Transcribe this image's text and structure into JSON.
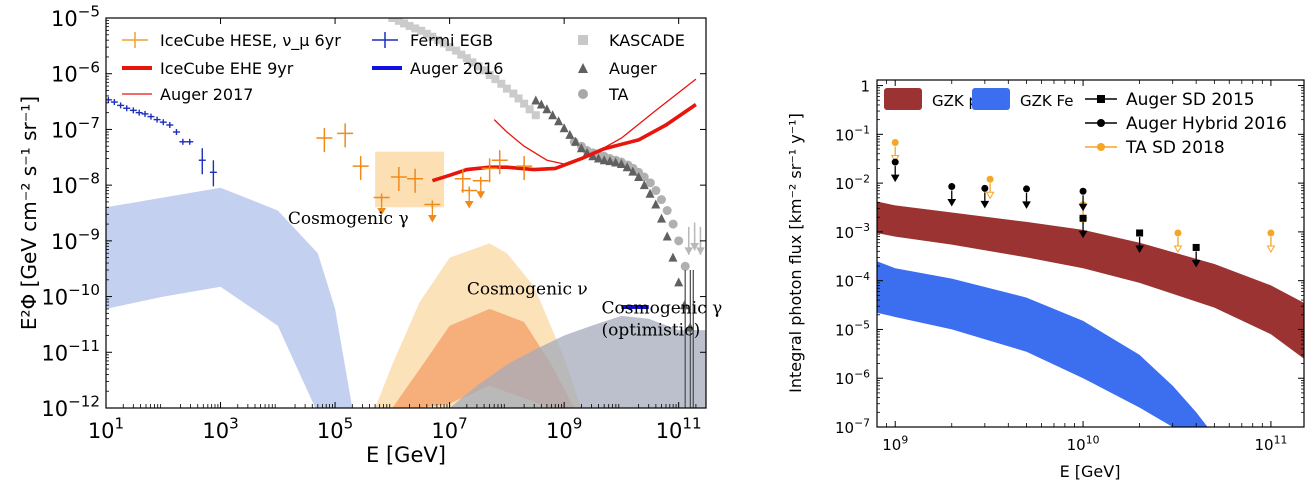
{
  "chart_data": [
    {
      "type": "scatter",
      "log_x": true,
      "log_y": true,
      "xlim": [
        10,
        300000000000
      ],
      "ylim": [
        1e-12,
        1e-05
      ],
      "xlabel": "E [GeV]",
      "ylabel": "E²Φ [GeV cm⁻² s⁻¹ sr⁻¹]",
      "x_ticks": [
        {
          "v": 10,
          "base": "10",
          "exp": "1"
        },
        {
          "v": 1000,
          "base": "10",
          "exp": "3"
        },
        {
          "v": 100000,
          "base": "10",
          "exp": "5"
        },
        {
          "v": 10000000,
          "base": "10",
          "exp": "7"
        },
        {
          "v": 1000000000,
          "base": "10",
          "exp": "9"
        },
        {
          "v": 100000000000,
          "base": "10",
          "exp": "11"
        }
      ],
      "y_ticks": [
        {
          "v": 1e-12,
          "base": "10",
          "exp": "−12"
        },
        {
          "v": 1e-11,
          "base": "10",
          "exp": "−11"
        },
        {
          "v": 1e-10,
          "base": "10",
          "exp": "−10"
        },
        {
          "v": 1e-09,
          "base": "10",
          "exp": "−9"
        },
        {
          "v": 1e-08,
          "base": "10",
          "exp": "−8"
        },
        {
          "v": 1e-07,
          "base": "10",
          "exp": "−7"
        },
        {
          "v": 1e-06,
          "base": "10",
          "exp": "−6"
        },
        {
          "v": 1e-05,
          "base": "10",
          "exp": "−5"
        }
      ],
      "legend_placement": "top-left, three columns",
      "legend": [
        {
          "label": "IceCube HESE, ν_μ 6yr",
          "color": "#f0a030",
          "marker": "cross"
        },
        {
          "label": "IceCube EHE 9yr",
          "color": "#e8150d",
          "marker": "thick-line"
        },
        {
          "label": "Auger 2017",
          "color": "#e8150d",
          "marker": "thin-line"
        },
        {
          "label": "Fermi EGB",
          "color": "#1a2fbd",
          "marker": "cross"
        },
        {
          "label": "Auger 2016",
          "color": "#1010e0",
          "marker": "thick-line"
        },
        {
          "label": "KASCADE",
          "color": "#c8c8c8",
          "marker": "square"
        },
        {
          "label": "Auger",
          "color": "#606060",
          "marker": "triangle"
        },
        {
          "label": "TA",
          "color": "#a8a8a8",
          "marker": "circle"
        }
      ],
      "annotations": [
        {
          "text": "Cosmogenic γ",
          "color": "#1a22c0",
          "at_x": 15000,
          "at_y": 2e-09
        },
        {
          "text": "Cosmogenic ν",
          "color": "#ea6a2a",
          "at_x": 20000000,
          "at_y": 1.1e-10
        },
        {
          "text": "Cosmogenic γ",
          "color": "#1a22c0",
          "at_x": 4500000000,
          "at_y": 5e-11
        },
        {
          "text": "(optimistic)",
          "color": "#1a22c0",
          "at_x": 4500000000,
          "at_y": 2e-11
        }
      ],
      "fermi_egb": {
        "x": [
          11,
          14,
          18,
          23,
          30,
          38,
          48,
          61,
          78,
          100,
          130,
          170,
          220,
          290,
          480,
          750
        ],
        "y": [
          3.4e-07,
          3.1e-07,
          2.7e-07,
          2.4e-07,
          2.2e-07,
          2e-07,
          1.9e-07,
          1.7e-07,
          1.5e-07,
          1.35e-07,
          1.2e-07,
          9e-08,
          6e-08,
          6e-08,
          2.8e-08,
          1.7e-08
        ],
        "upper_limit_x": [
          480,
          750
        ]
      },
      "icecube_hese": [
        {
          "x": 65000,
          "y": 7e-08,
          "ul": false
        },
        {
          "x": 150000,
          "y": 8.5e-08,
          "ul": false
        },
        {
          "x": 280000,
          "y": 2.2e-08,
          "ul": false
        },
        {
          "x": 650000,
          "y": 6e-09,
          "ul": true
        },
        {
          "x": 1300000,
          "y": 1.4e-08,
          "ul": false
        },
        {
          "x": 2500000,
          "y": 1.3e-08,
          "ul": false
        },
        {
          "x": 5000000,
          "y": 4.5e-09,
          "ul": true
        }
      ],
      "icecube_numu": [
        {
          "x": 17000000,
          "y": 1.3e-08,
          "ul": false
        },
        {
          "x": 22000000,
          "y": 8e-09,
          "ul": true
        },
        {
          "x": 35000000,
          "y": 1.2e-08,
          "ul": true
        },
        {
          "x": 50000000,
          "y": 2e-08,
          "ul": false
        },
        {
          "x": 75000000,
          "y": 2.8e-08,
          "ul": false
        },
        {
          "x": 200000000,
          "y": 2.2e-08,
          "ul": false
        }
      ],
      "icecube_numu_band": {
        "x": [
          500000,
          8000000
        ],
        "y": [
          4e-09,
          4e-08
        ]
      },
      "icecube_ehe_9yr": {
        "x": [
          5000000,
          10000000,
          20000000,
          50000000,
          100000000,
          300000000,
          700000000,
          2000000000,
          5000000000,
          20000000000,
          60000000000,
          200000000000
        ],
        "y": [
          1.2e-08,
          1.5e-08,
          1.9e-08,
          2.1e-08,
          2.1e-08,
          1.9e-08,
          2e-08,
          3e-08,
          4.5e-08,
          6.5e-08,
          1.2e-07,
          2.8e-07
        ]
      },
      "auger_2017": {
        "x": [
          60000000,
          100000000,
          200000000,
          500000000,
          1000000000,
          3000000000,
          10000000000,
          40000000000,
          200000000000
        ],
        "y": [
          1.5e-07,
          9e-08,
          5e-08,
          2.8e-08,
          2.4e-08,
          3.5e-08,
          7e-08,
          2.2e-07,
          8e-07
        ]
      },
      "auger_2016_photon": {
        "x": [
          10000000000,
          30000000000
        ],
        "y": 6.5e-11
      },
      "kascade": {
        "x": [
          1000000,
          1300000,
          1600000,
          2000000,
          2500000,
          3200000,
          4000000,
          5000000,
          6300000,
          8000000,
          10000000,
          13000000,
          16000000,
          20000000,
          25000000,
          32000000,
          40000000,
          50000000,
          63000000,
          80000000,
          100000000,
          130000000,
          160000000,
          200000000,
          250000000,
          320000000
        ],
        "y": [
          1e-05,
          8.9e-06,
          8e-06,
          7.2e-06,
          6.5e-06,
          5.9e-06,
          5.2e-06,
          4.6e-06,
          4e-06,
          3.5e-06,
          3e-06,
          2.6e-06,
          2.2e-06,
          1.9e-06,
          1.6e-06,
          1.35e-06,
          1.15e-06,
          9.5e-07,
          8e-07,
          6.6e-07,
          5.4e-07,
          4.4e-07,
          3.6e-07,
          2.9e-07,
          2.3e-07,
          1.8e-07
        ]
      },
      "auger": {
        "x": [
          320000000,
          400000000,
          500000000,
          630000000,
          800000000,
          1000000000,
          1260000000,
          1580000000,
          2000000000,
          2510000000,
          3160000000,
          3980000000,
          5010000000,
          6310000000,
          7940000000,
          10000000000,
          12600000000,
          15800000000,
          20000000000,
          25100000000,
          31600000000,
          39800000000,
          50100000000,
          63100000000,
          79400000000,
          100000000000,
          126000000000,
          158000000000
        ],
        "y": [
          3.3e-07,
          2.8e-07,
          2.3e-07,
          1.8e-07,
          1.4e-07,
          1.05e-07,
          8e-08,
          6e-08,
          4.6e-08,
          3.8e-08,
          3.3e-08,
          3e-08,
          2.8e-08,
          2.7e-08,
          2.55e-08,
          2.4e-08,
          2.1e-08,
          1.75e-08,
          1.4e-08,
          1e-08,
          7e-09,
          4.5e-09,
          2.5e-09,
          1.2e-09,
          5e-10,
          1.8e-10,
          7e-11,
          2.8e-11
        ]
      },
      "ta": {
        "x": [
          1500000000,
          2000000000,
          2500000000,
          3200000000,
          4000000000,
          5000000000,
          6300000000,
          8000000000,
          10000000000,
          13000000000,
          16000000000,
          20000000000,
          25000000000,
          32000000000,
          40000000000,
          50000000000,
          63000000000,
          80000000000,
          100000000000,
          130000000000
        ],
        "y": [
          6e-08,
          5e-08,
          4.2e-08,
          3.8e-08,
          3.5e-08,
          3.3e-08,
          3e-08,
          2.8e-08,
          2.6e-08,
          2.3e-08,
          2e-08,
          1.7e-08,
          1.4e-08,
          1.1e-08,
          8e-09,
          5.5e-09,
          3.5e-09,
          2e-09,
          1e-09,
          3.5e-10
        ]
      },
      "cosmogenic_gamma_band": {
        "x": [
          10,
          100,
          1000,
          10000,
          50000,
          100000,
          200000,
          500000
        ],
        "upper": [
          4e-09,
          6e-09,
          9e-09,
          3.5e-09,
          6e-10,
          6e-11,
          1e-12,
          1e-12
        ],
        "lower": [
          6e-11,
          1e-10,
          1.5e-10,
          3e-11,
          8e-13,
          1e-12,
          1e-12,
          1e-12
        ]
      },
      "cosmogenic_nu_outer": {
        "x": [
          500000,
          1000000,
          3000000,
          10000000,
          50000000,
          100000000,
          300000000,
          1000000000,
          2000000000
        ],
        "upper": [
          1e-12,
          6e-12,
          8e-11,
          5e-10,
          9e-10,
          6e-10,
          1.5e-10,
          8e-12,
          1e-12
        ],
        "lower": [
          1e-12,
          1e-12,
          1e-12,
          1e-12,
          1e-12,
          1e-12,
          1e-12,
          1e-12,
          1e-12
        ]
      },
      "cosmogenic_nu_inner": {
        "x": [
          1000000,
          3000000,
          10000000,
          50000000,
          200000000,
          600000000,
          1500000000
        ],
        "upper": [
          1e-12,
          5e-12,
          3e-11,
          6e-11,
          3.5e-11,
          6e-12,
          1e-12
        ],
        "lower": [
          1e-12,
          1e-12,
          1.2e-12,
          2.5e-12,
          1.5e-12,
          1e-12,
          1e-12
        ]
      },
      "cosmogenic_gamma_optimistic_band": {
        "x": [
          10000000,
          30000000,
          100000000,
          300000000,
          1000000000,
          3000000000,
          10000000000,
          30000000000,
          100000000000,
          300000000000
        ],
        "upper": [
          1e-12,
          2.5e-12,
          6e-12,
          1.1e-11,
          2e-11,
          3e-11,
          4.5e-11,
          4e-11,
          2.5e-11,
          2.5e-11
        ],
        "lower": [
          1e-12,
          1e-12,
          1e-12,
          1e-12,
          1e-12,
          1e-12,
          1e-12,
          1e-12,
          1e-12,
          1e-12
        ]
      },
      "grey_upper_limits": {
        "x": [
          150000000000,
          190000000000,
          240000000000
        ],
        "y": [
          1e-09,
          1.2e-09,
          1e-09
        ]
      }
    },
    {
      "type": "area",
      "log_x": true,
      "log_y": true,
      "xlim": [
        800000000,
        150000000000
      ],
      "ylim": [
        1e-07,
        1.3
      ],
      "xlabel": "E [GeV]",
      "ylabel": "Integral photon flux [km⁻² sr⁻¹ y⁻¹]",
      "x_ticks": [
        {
          "v": 1000000000,
          "base": "10",
          "exp": "9"
        },
        {
          "v": 10000000000,
          "base": "10",
          "exp": "10"
        },
        {
          "v": 100000000000,
          "base": "10",
          "exp": "11"
        }
      ],
      "y_ticks": [
        {
          "v": 1,
          "base": "1",
          "exp": ""
        },
        {
          "v": 0.1,
          "base": "10",
          "exp": "−1"
        },
        {
          "v": 0.01,
          "base": "10",
          "exp": "−2"
        },
        {
          "v": 0.001,
          "base": "10",
          "exp": "−3"
        },
        {
          "v": 0.0001,
          "base": "10",
          "exp": "−4"
        },
        {
          "v": 1e-05,
          "base": "10",
          "exp": "−5"
        },
        {
          "v": 1e-06,
          "base": "10",
          "exp": "−6"
        },
        {
          "v": 1e-07,
          "base": "10",
          "exp": "−7"
        }
      ],
      "legend_placement": "top",
      "legend": [
        {
          "label": "GZK p",
          "color": "#9b3333",
          "marker": "patch"
        },
        {
          "label": "GZK Fe",
          "color": "#3c6ef0",
          "marker": "patch"
        },
        {
          "label": "Auger SD 2015",
          "color": "#000000",
          "marker": "square-line"
        },
        {
          "label": "Auger Hybrid 2016",
          "color": "#000000",
          "marker": "circle-line"
        },
        {
          "label": "TA SD 2018",
          "color": "#f5a623",
          "marker": "circle-line"
        }
      ],
      "gzk_p": {
        "x": [
          800000000,
          1000000000,
          2000000000,
          5000000000,
          10000000000,
          20000000000,
          50000000000,
          100000000000,
          150000000000
        ],
        "upper": [
          0.0042,
          0.0035,
          0.0025,
          0.0016,
          0.0011,
          0.0006,
          0.00022,
          8e-05,
          3.5e-05
        ],
        "lower": [
          0.00095,
          0.0008,
          0.00055,
          0.0003,
          0.00018,
          9e-05,
          2.8e-05,
          8e-06,
          2.5e-06
        ]
      },
      "gzk_fe": {
        "x": [
          800000000,
          1000000000,
          2000000000,
          5000000000,
          10000000000,
          20000000000,
          30000000000,
          40000000000,
          46000000000
        ],
        "upper": [
          0.00025,
          0.00018,
          0.00011,
          4.5e-05,
          1.5e-05,
          3e-06,
          7e-07,
          2e-07,
          1e-07
        ],
        "lower": [
          2.2e-05,
          1.8e-05,
          1e-05,
          3.5e-06,
          1e-06,
          2.5e-07,
          1e-07,
          1e-07,
          1e-07
        ]
      },
      "auger_sd_2015": {
        "x": [
          10000000000,
          20000000000,
          40000000000
        ],
        "y": [
          0.0019,
          0.00095,
          0.00048
        ]
      },
      "auger_hybrid_2016": {
        "x": [
          1000000000,
          2000000000,
          3000000000,
          5000000000,
          10000000000
        ],
        "y": [
          0.027,
          0.0085,
          0.0078,
          0.0076,
          0.0068
        ]
      },
      "ta_sd_2018": {
        "x": [
          1000000000,
          3200000000,
          10000000000,
          32000000000,
          100000000000
        ],
        "y": [
          0.068,
          0.012,
          0.0036,
          0.00095,
          0.00095
        ]
      }
    }
  ]
}
